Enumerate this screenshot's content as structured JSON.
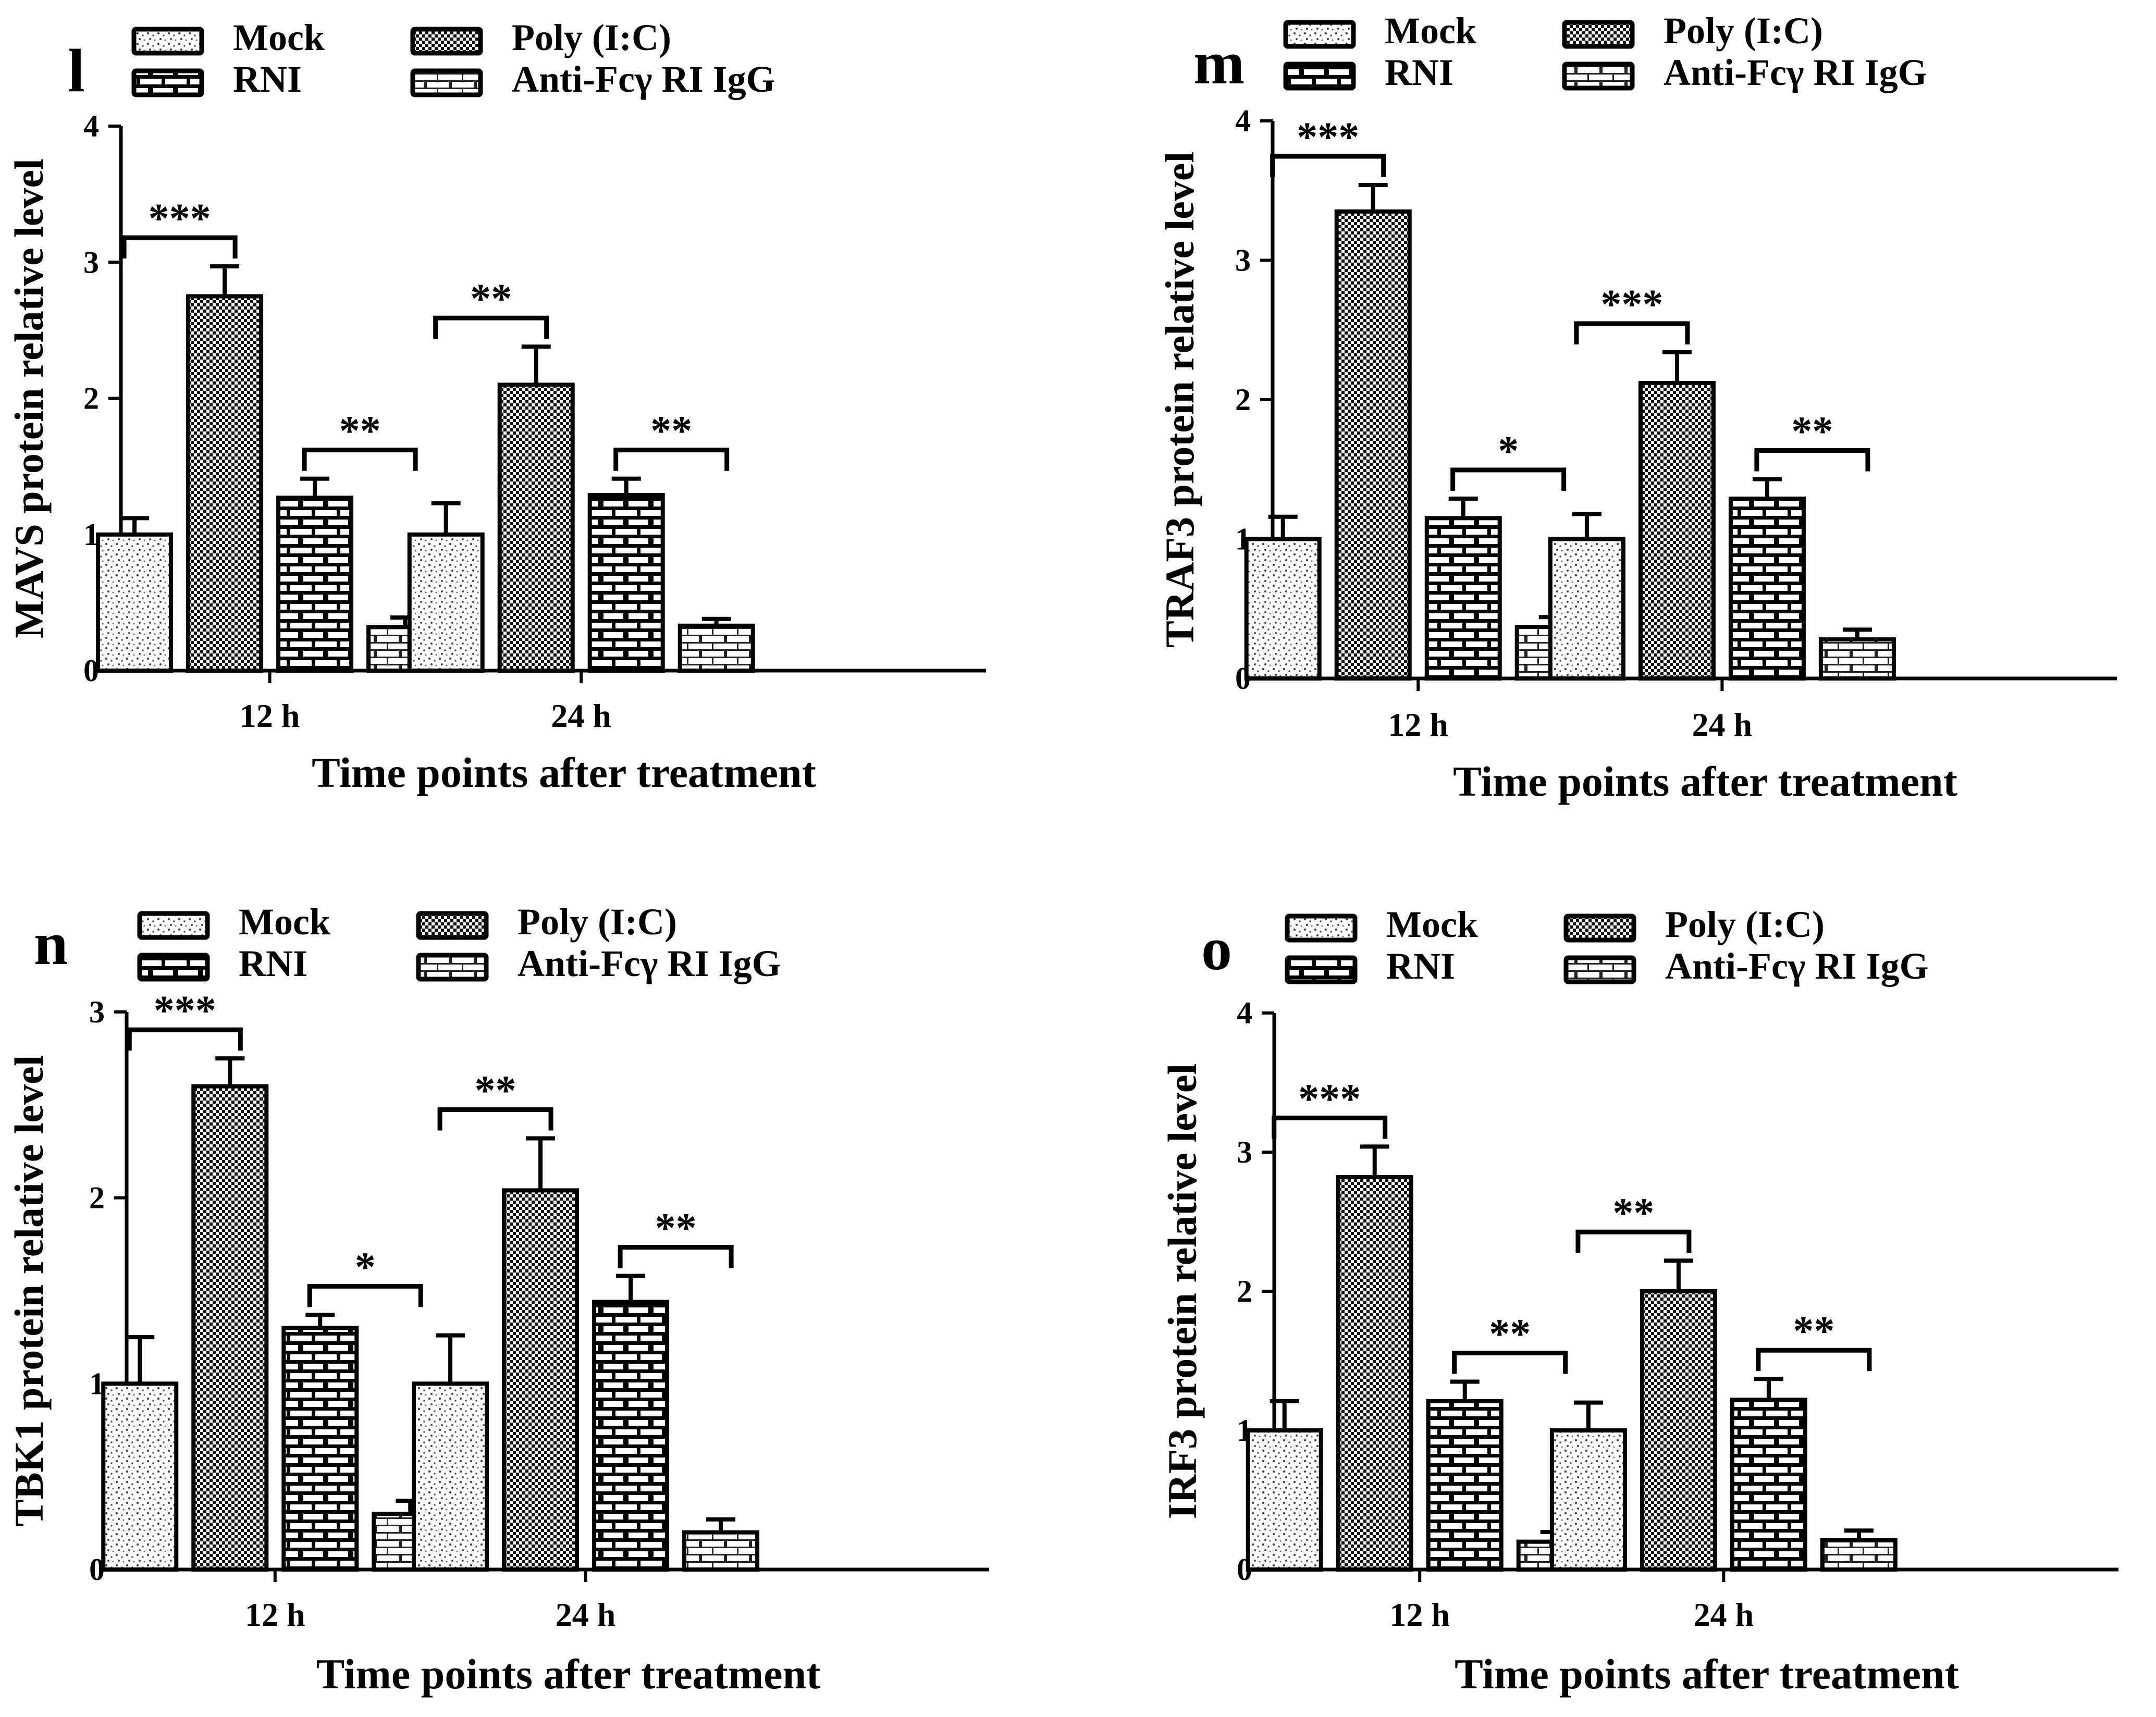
{
  "legend_labels": [
    "Mock",
    "Poly (I:C)",
    "RNI",
    "Anti-Fcγ  RI IgG"
  ],
  "chart_data": [
    {
      "panel": "l",
      "type": "bar",
      "ylabel": "MAVS protein relative level",
      "xlabel": "Time points after treatment",
      "categories": [
        "12 h",
        "24 h"
      ],
      "yticks": [
        "0",
        "1",
        "2",
        "3",
        "4"
      ],
      "ylim": [
        0,
        4
      ],
      "series": [
        {
          "name": "Mock",
          "values": [
            1.0,
            1.0
          ],
          "errors": [
            0.12,
            0.23
          ]
        },
        {
          "name": "Poly (I:C)",
          "values": [
            2.75,
            2.1
          ],
          "errors": [
            0.22,
            0.28
          ]
        },
        {
          "name": "RNI",
          "values": [
            1.27,
            1.29
          ],
          "errors": [
            0.14,
            0.12
          ]
        },
        {
          "name": "Anti-Fcγ  RI IgG",
          "values": [
            0.32,
            0.33
          ],
          "errors": [
            0.07,
            0.05
          ]
        }
      ],
      "significance": [
        {
          "group": 0,
          "from": 0,
          "to": 1,
          "label": "***"
        },
        {
          "group": 0,
          "from": 2,
          "to": 3,
          "label": "**"
        },
        {
          "group": 1,
          "from": 0,
          "to": 1,
          "label": "**"
        },
        {
          "group": 1,
          "from": 2,
          "to": 3,
          "label": "**"
        }
      ]
    },
    {
      "panel": "m",
      "type": "bar",
      "ylabel": "TRAF3 protein relative level",
      "xlabel": "Time points after treatment",
      "categories": [
        "12 h",
        "24 h"
      ],
      "yticks": [
        "0",
        "1",
        "2",
        "3",
        "4"
      ],
      "ylim": [
        0,
        4
      ],
      "series": [
        {
          "name": "Mock",
          "values": [
            1.0,
            1.0
          ],
          "errors": [
            0.16,
            0.18
          ]
        },
        {
          "name": "Poly (I:C)",
          "values": [
            3.35,
            2.12
          ],
          "errors": [
            0.19,
            0.22
          ]
        },
        {
          "name": "RNI",
          "values": [
            1.15,
            1.29
          ],
          "errors": [
            0.14,
            0.14
          ]
        },
        {
          "name": "Anti-Fcγ  RI IgG",
          "values": [
            0.37,
            0.28
          ],
          "errors": [
            0.07,
            0.07
          ]
        }
      ],
      "significance": [
        {
          "group": 0,
          "from": 0,
          "to": 1,
          "label": "***"
        },
        {
          "group": 0,
          "from": 2,
          "to": 3,
          "label": "*"
        },
        {
          "group": 1,
          "from": 0,
          "to": 1,
          "label": "***"
        },
        {
          "group": 1,
          "from": 2,
          "to": 3,
          "label": "**"
        }
      ]
    },
    {
      "panel": "n",
      "type": "bar",
      "ylabel": "TBK1 protein relative level",
      "xlabel": "Time points after treatment",
      "categories": [
        "12 h",
        "24 h"
      ],
      "yticks": [
        "0",
        "1",
        "2",
        "3"
      ],
      "ylim": [
        0,
        3
      ],
      "series": [
        {
          "name": "Mock",
          "values": [
            1.0,
            1.0
          ],
          "errors": [
            0.25,
            0.26
          ]
        },
        {
          "name": "Poly (I:C)",
          "values": [
            2.6,
            2.04
          ],
          "errors": [
            0.15,
            0.28
          ]
        },
        {
          "name": "RNI",
          "values": [
            1.3,
            1.44
          ],
          "errors": [
            0.07,
            0.14
          ]
        },
        {
          "name": "Anti-Fcγ  RI IgG",
          "values": [
            0.3,
            0.2
          ],
          "errors": [
            0.07,
            0.07
          ]
        }
      ],
      "significance": [
        {
          "group": 0,
          "from": 0,
          "to": 1,
          "label": "***"
        },
        {
          "group": 0,
          "from": 2,
          "to": 3,
          "label": "*"
        },
        {
          "group": 1,
          "from": 0,
          "to": 1,
          "label": "**"
        },
        {
          "group": 1,
          "from": 2,
          "to": 3,
          "label": "**"
        }
      ]
    },
    {
      "panel": "o",
      "type": "bar",
      "ylabel": "IRF3 protein relative level",
      "xlabel": "Time points after treatment",
      "categories": [
        "12 h",
        "24 h"
      ],
      "yticks": [
        "0",
        "1",
        "2",
        "3",
        "4"
      ],
      "ylim": [
        0,
        4
      ],
      "series": [
        {
          "name": "Mock",
          "values": [
            1.0,
            1.0
          ],
          "errors": [
            0.21,
            0.2
          ]
        },
        {
          "name": "Poly (I:C)",
          "values": [
            2.82,
            2.0
          ],
          "errors": [
            0.22,
            0.22
          ]
        },
        {
          "name": "RNI",
          "values": [
            1.21,
            1.22
          ],
          "errors": [
            0.14,
            0.15
          ]
        },
        {
          "name": "Anti-Fcγ  RI IgG",
          "values": [
            0.2,
            0.21
          ],
          "errors": [
            0.07,
            0.07
          ]
        }
      ],
      "significance": [
        {
          "group": 0,
          "from": 0,
          "to": 1,
          "label": "***"
        },
        {
          "group": 0,
          "from": 2,
          "to": 3,
          "label": "**"
        },
        {
          "group": 1,
          "from": 0,
          "to": 1,
          "label": "**"
        },
        {
          "group": 1,
          "from": 2,
          "to": 3,
          "label": "**"
        }
      ]
    }
  ]
}
